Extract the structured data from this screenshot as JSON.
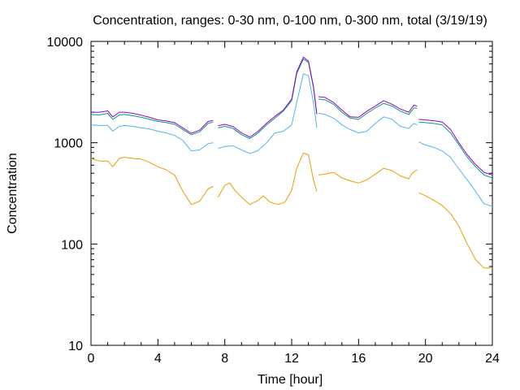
{
  "chart_data": {
    "type": "line",
    "title": "Concentration, ranges: 0-30 nm, 0-100 nm, 0-300 nm, total (3/19/19)",
    "xlabel": "Time [hour]",
    "ylabel": "Concentration",
    "xlim": [
      0,
      24
    ],
    "ylim": [
      10,
      10000
    ],
    "yscale": "log",
    "grid": false,
    "legend": "none",
    "x_ticks": [
      0,
      4,
      8,
      12,
      16,
      20,
      24
    ],
    "x_tick_labels": [
      "0",
      "4",
      "8",
      "12",
      "16",
      "20",
      "24"
    ],
    "y_ticks": [
      10,
      100,
      1000,
      10000
    ],
    "y_tick_labels": [
      "10",
      "100",
      "1000",
      "10000"
    ],
    "series": [
      {
        "color": "#e69f00",
        "segments": [
          [
            [
              0,
              700
            ],
            [
              0.5,
              660
            ],
            [
              1,
              660
            ],
            [
              1.3,
              580
            ],
            [
              1.7,
              700
            ],
            [
              2,
              720
            ],
            [
              2.5,
              700
            ],
            [
              3,
              690
            ],
            [
              3.5,
              640
            ],
            [
              4,
              580
            ],
            [
              4.5,
              540
            ],
            [
              5,
              480
            ],
            [
              5.5,
              330
            ],
            [
              6,
              245
            ],
            [
              6.5,
              265
            ],
            [
              7,
              350
            ],
            [
              7.3,
              370
            ]
          ],
          [
            [
              7.6,
              290
            ],
            [
              8,
              380
            ],
            [
              8.3,
              400
            ],
            [
              8.6,
              340
            ],
            [
              9,
              290
            ],
            [
              9.5,
              245
            ],
            [
              10,
              270
            ],
            [
              10.3,
              300
            ],
            [
              10.7,
              260
            ],
            [
              11.2,
              245
            ],
            [
              11.6,
              260
            ],
            [
              12,
              340
            ],
            [
              12.3,
              560
            ],
            [
              12.7,
              790
            ],
            [
              13,
              760
            ],
            [
              13.3,
              430
            ],
            [
              13.5,
              330
            ]
          ],
          [
            [
              13.6,
              480
            ],
            [
              14,
              490
            ],
            [
              14.5,
              510
            ],
            [
              15,
              450
            ],
            [
              15.5,
              420
            ],
            [
              16,
              400
            ],
            [
              16.5,
              430
            ],
            [
              17,
              490
            ],
            [
              17.5,
              560
            ],
            [
              18,
              530
            ],
            [
              18.5,
              470
            ],
            [
              19,
              440
            ],
            [
              19.2,
              500
            ],
            [
              19.5,
              540
            ]
          ],
          [
            [
              19.6,
              320
            ],
            [
              20,
              300
            ],
            [
              20.5,
              270
            ],
            [
              21,
              240
            ],
            [
              21.5,
              200
            ],
            [
              22,
              150
            ],
            [
              22.5,
              100
            ],
            [
              23,
              70
            ],
            [
              23.5,
              58
            ],
            [
              24,
              58
            ]
          ]
        ]
      },
      {
        "color": "#56b4e9",
        "segments": [
          [
            [
              0,
              1500
            ],
            [
              0.5,
              1480
            ],
            [
              1,
              1480
            ],
            [
              1.3,
              1300
            ],
            [
              1.7,
              1450
            ],
            [
              2,
              1480
            ],
            [
              2.5,
              1450
            ],
            [
              3,
              1400
            ],
            [
              3.5,
              1370
            ],
            [
              4,
              1300
            ],
            [
              4.5,
              1250
            ],
            [
              5,
              1180
            ],
            [
              5.5,
              1050
            ],
            [
              6,
              830
            ],
            [
              6.5,
              850
            ],
            [
              7,
              980
            ],
            [
              7.3,
              1000
            ]
          ],
          [
            [
              7.6,
              880
            ],
            [
              8,
              920
            ],
            [
              8.5,
              930
            ],
            [
              9,
              850
            ],
            [
              9.5,
              780
            ],
            [
              10,
              840
            ],
            [
              10.5,
              1000
            ],
            [
              11,
              1250
            ],
            [
              11.5,
              1300
            ],
            [
              12,
              1500
            ],
            [
              12.3,
              2500
            ],
            [
              12.7,
              4800
            ],
            [
              13,
              4600
            ],
            [
              13.3,
              2500
            ],
            [
              13.5,
              1400
            ]
          ],
          [
            [
              13.6,
              1950
            ],
            [
              14,
              1900
            ],
            [
              14.5,
              1750
            ],
            [
              15,
              1500
            ],
            [
              15.5,
              1350
            ],
            [
              16,
              1250
            ],
            [
              16.5,
              1300
            ],
            [
              17,
              1550
            ],
            [
              17.5,
              1800
            ],
            [
              18,
              1700
            ],
            [
              18.5,
              1450
            ],
            [
              19,
              1380
            ],
            [
              19.3,
              1550
            ],
            [
              19.5,
              1500
            ]
          ],
          [
            [
              19.6,
              1020
            ],
            [
              20,
              950
            ],
            [
              20.5,
              900
            ],
            [
              21,
              830
            ],
            [
              21.5,
              720
            ],
            [
              22,
              550
            ],
            [
              22.5,
              430
            ],
            [
              23,
              330
            ],
            [
              23.5,
              250
            ],
            [
              24,
              235
            ]
          ]
        ]
      },
      {
        "color": "#009e73",
        "segments": [
          [
            [
              0,
              1900
            ],
            [
              0.5,
              1880
            ],
            [
              1,
              1950
            ],
            [
              1.3,
              1700
            ],
            [
              1.7,
              1880
            ],
            [
              2,
              1900
            ],
            [
              2.5,
              1850
            ],
            [
              3,
              1780
            ],
            [
              3.5,
              1700
            ],
            [
              4,
              1620
            ],
            [
              4.5,
              1580
            ],
            [
              5,
              1520
            ],
            [
              5.5,
              1350
            ],
            [
              6,
              1200
            ],
            [
              6.5,
              1280
            ],
            [
              7,
              1550
            ],
            [
              7.3,
              1600
            ]
          ],
          [
            [
              7.6,
              1400
            ],
            [
              8,
              1450
            ],
            [
              8.5,
              1380
            ],
            [
              9,
              1200
            ],
            [
              9.5,
              1100
            ],
            [
              10,
              1250
            ],
            [
              10.5,
              1500
            ],
            [
              11,
              1750
            ],
            [
              11.5,
              2050
            ],
            [
              12,
              2600
            ],
            [
              12.3,
              4800
            ],
            [
              12.7,
              6700
            ],
            [
              13,
              6200
            ],
            [
              13.3,
              3500
            ],
            [
              13.5,
              1900
            ]
          ],
          [
            [
              13.6,
              2700
            ],
            [
              14,
              2650
            ],
            [
              14.5,
              2400
            ],
            [
              15,
              2000
            ],
            [
              15.5,
              1750
            ],
            [
              16,
              1700
            ],
            [
              16.5,
              1950
            ],
            [
              17,
              2200
            ],
            [
              17.5,
              2450
            ],
            [
              18,
              2300
            ],
            [
              18.5,
              2050
            ],
            [
              19,
              1900
            ],
            [
              19.3,
              2200
            ],
            [
              19.5,
              2200
            ]
          ],
          [
            [
              19.6,
              1600
            ],
            [
              20,
              1580
            ],
            [
              20.5,
              1550
            ],
            [
              21,
              1500
            ],
            [
              21.5,
              1250
            ],
            [
              22,
              950
            ],
            [
              22.5,
              720
            ],
            [
              23,
              580
            ],
            [
              23.5,
              480
            ],
            [
              24,
              450
            ]
          ]
        ]
      },
      {
        "color": "#9400d3",
        "segments": [
          [
            [
              0,
              2000
            ],
            [
              0.5,
              2000
            ],
            [
              1,
              2060
            ],
            [
              1.3,
              1800
            ],
            [
              1.7,
              2000
            ],
            [
              2,
              2000
            ],
            [
              2.5,
              1950
            ],
            [
              3,
              1870
            ],
            [
              3.5,
              1780
            ],
            [
              4,
              1680
            ],
            [
              4.5,
              1640
            ],
            [
              5,
              1580
            ],
            [
              5.5,
              1400
            ],
            [
              6,
              1240
            ],
            [
              6.5,
              1330
            ],
            [
              7,
              1620
            ],
            [
              7.3,
              1660
            ]
          ],
          [
            [
              7.6,
              1470
            ],
            [
              8,
              1520
            ],
            [
              8.5,
              1440
            ],
            [
              9,
              1250
            ],
            [
              9.5,
              1140
            ],
            [
              10,
              1300
            ],
            [
              10.5,
              1560
            ],
            [
              11,
              1820
            ],
            [
              11.5,
              2100
            ],
            [
              12,
              2700
            ],
            [
              12.3,
              5000
            ],
            [
              12.7,
              7000
            ],
            [
              13,
              6400
            ],
            [
              13.3,
              3600
            ],
            [
              13.5,
              1950
            ]
          ],
          [
            [
              13.6,
              2850
            ],
            [
              14,
              2800
            ],
            [
              14.5,
              2500
            ],
            [
              15,
              2100
            ],
            [
              15.5,
              1800
            ],
            [
              16,
              1780
            ],
            [
              16.5,
              2050
            ],
            [
              17,
              2300
            ],
            [
              17.5,
              2600
            ],
            [
              18,
              2400
            ],
            [
              18.5,
              2150
            ],
            [
              19,
              2000
            ],
            [
              19.3,
              2350
            ],
            [
              19.5,
              2300
            ]
          ],
          [
            [
              19.6,
              1700
            ],
            [
              20,
              1680
            ],
            [
              20.5,
              1650
            ],
            [
              21,
              1600
            ],
            [
              21.5,
              1350
            ],
            [
              22,
              1000
            ],
            [
              22.5,
              760
            ],
            [
              23,
              610
            ],
            [
              23.5,
              510
            ],
            [
              24,
              480
            ]
          ]
        ]
      }
    ]
  }
}
